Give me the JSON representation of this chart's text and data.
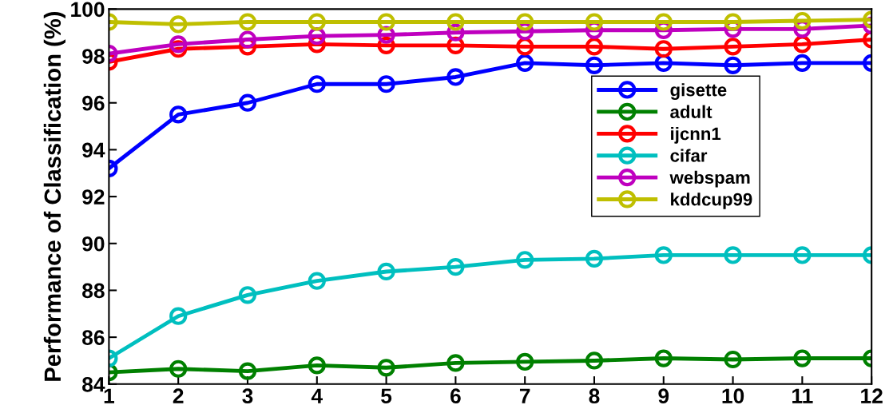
{
  "chart_data": {
    "type": "line",
    "ylabel": "Performance of Classification (%)",
    "x": [
      1,
      2,
      3,
      4,
      5,
      6,
      7,
      8,
      9,
      10,
      11,
      12
    ],
    "xlim": [
      1,
      12
    ],
    "xticks": [
      1,
      2,
      3,
      4,
      5,
      6,
      7,
      8,
      9,
      10,
      11,
      12
    ],
    "ylim": [
      84,
      100
    ],
    "yticks": [
      84,
      86,
      88,
      90,
      92,
      94,
      96,
      98,
      100
    ],
    "grid": false,
    "legend": "top right",
    "marker": "circle",
    "line_style": "solid",
    "series": [
      {
        "name": "gisette",
        "color": "#0000ff",
        "values": [
          93.2,
          95.5,
          96.0,
          96.8,
          96.8,
          97.1,
          97.7,
          97.6,
          97.7,
          97.6,
          97.7,
          97.7
        ]
      },
      {
        "name": "adult",
        "color": "#008000",
        "values": [
          84.5,
          84.65,
          84.55,
          84.8,
          84.7,
          84.9,
          84.95,
          85.0,
          85.1,
          85.05,
          85.1,
          85.1
        ]
      },
      {
        "name": "ijcnn1",
        "color": "#ff0000",
        "values": [
          97.75,
          98.3,
          98.4,
          98.5,
          98.45,
          98.45,
          98.4,
          98.4,
          98.3,
          98.4,
          98.5,
          98.7
        ]
      },
      {
        "name": "cifar",
        "color": "#00bfbf",
        "values": [
          85.1,
          86.9,
          87.8,
          88.4,
          88.8,
          89.0,
          89.3,
          89.35,
          89.5,
          89.5,
          89.5,
          89.5
        ]
      },
      {
        "name": "webspam",
        "color": "#bf00bf",
        "values": [
          98.1,
          98.5,
          98.7,
          98.85,
          98.9,
          99.0,
          99.05,
          99.1,
          99.1,
          99.15,
          99.15,
          99.3
        ]
      },
      {
        "name": "kddcup99",
        "color": "#bfbf00",
        "values": [
          99.45,
          99.35,
          99.45,
          99.45,
          99.45,
          99.45,
          99.45,
          99.45,
          99.45,
          99.45,
          99.5,
          99.55
        ]
      }
    ]
  }
}
